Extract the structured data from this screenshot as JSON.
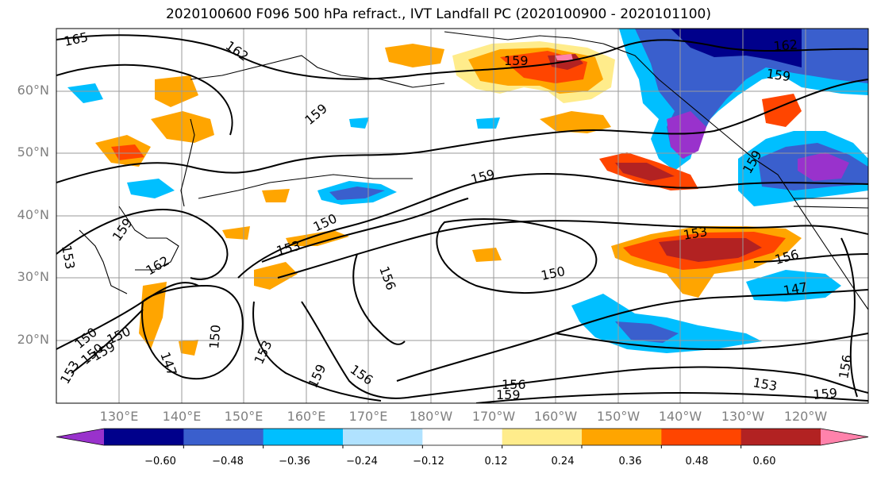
{
  "title": "2020100600 F096 500 hPa refract., IVT Landfall PC (2020100900 - 2020101100)",
  "lat_labels": [
    "60°N",
    "50°N",
    "40°N",
    "30°N",
    "20°N"
  ],
  "lon_labels": [
    "130°E",
    "140°E",
    "150°E",
    "160°E",
    "170°E",
    "180°W",
    "170°W",
    "160°W",
    "150°W",
    "140°W",
    "130°W",
    "120°W"
  ],
  "colorbar": {
    "ticks": [
      "−0.60",
      "−0.48",
      "−0.36",
      "−0.24",
      "−0.12",
      "0.12",
      "0.24",
      "0.36",
      "0.48",
      "0.60"
    ],
    "colors": [
      "#9932cc",
      "#00008b",
      "#3a5fcd",
      "#00bfff",
      "#b0e2ff",
      "#ffffff",
      "#ffec8b",
      "#ffa500",
      "#ff4500",
      "#b22222",
      "#ff82ab"
    ]
  },
  "contour_labels": [
    "165",
    "162",
    "159",
    "159",
    "162",
    "159",
    "159",
    "150",
    "153",
    "153",
    "156",
    "159",
    "162",
    "150",
    "153",
    "159",
    "150",
    "156",
    "150",
    "153",
    "156",
    "147",
    "147",
    "150",
    "153",
    "156",
    "159",
    "150",
    "156",
    "159",
    "159",
    "153",
    "159",
    "162",
    "150"
  ]
}
